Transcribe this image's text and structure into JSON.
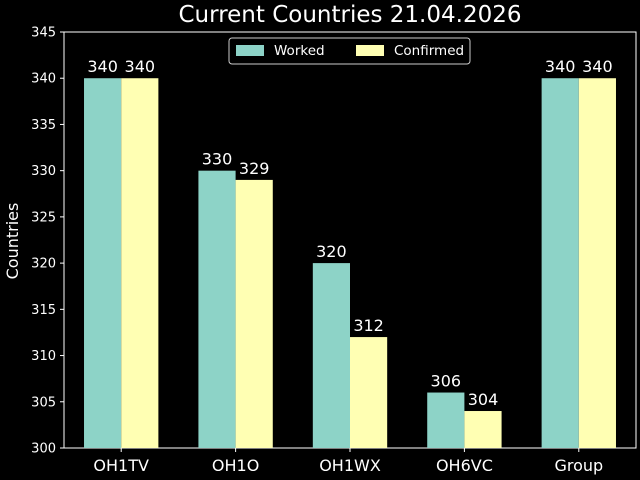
{
  "chart_data": {
    "type": "bar",
    "title": "Current Countries    21.04.2026",
    "xlabel": "",
    "ylabel": "Countries",
    "categories": [
      "OH1TV",
      "OH1O",
      "OH1WX",
      "OH6VC",
      "Group"
    ],
    "series": [
      {
        "name": "Worked",
        "values": [
          340,
          330,
          320,
          306,
          340
        ],
        "color": "#8dd3c7"
      },
      {
        "name": "Confirmed",
        "values": [
          340,
          329,
          312,
          304,
          340
        ],
        "color": "#ffffb3"
      }
    ],
    "ylim": [
      300,
      345
    ],
    "yticks": [
      300,
      305,
      310,
      315,
      320,
      325,
      330,
      335,
      340,
      345
    ],
    "grid": false,
    "legend_position": "top-center",
    "background": "#000000",
    "foreground": "#ffffff"
  }
}
